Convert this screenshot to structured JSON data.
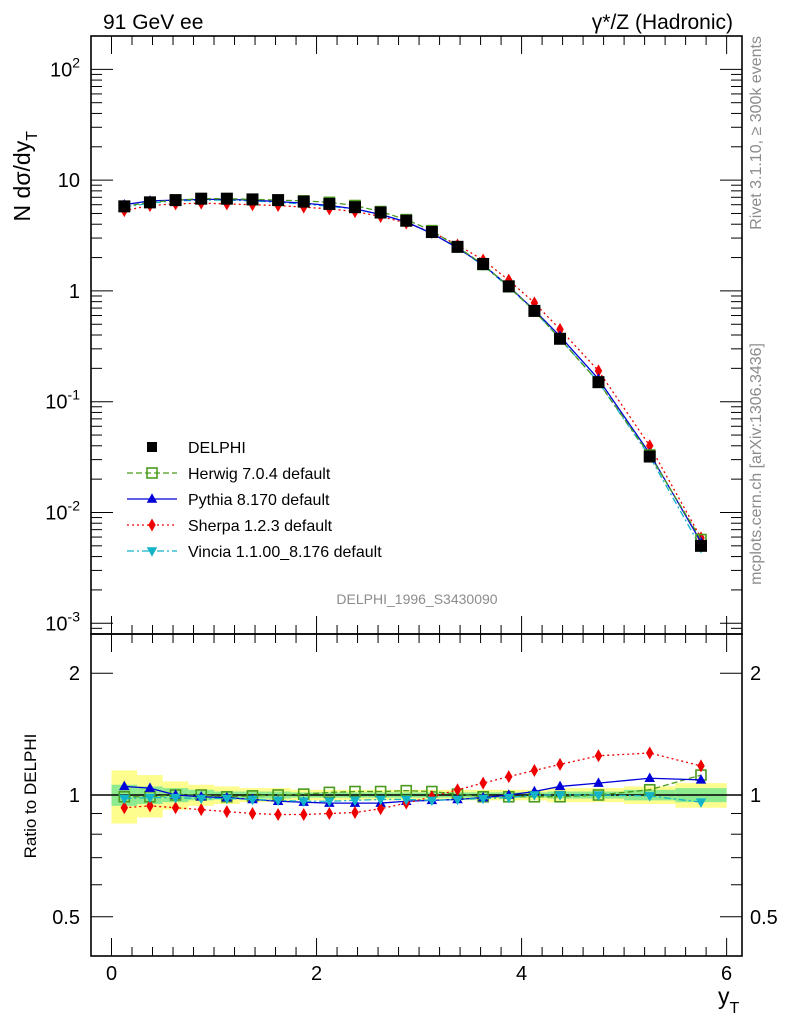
{
  "header": {
    "left": "91 GeV ee",
    "right": "γ*/Z (Hadronic)"
  },
  "side_text": {
    "rivet": "Rivet 3.1.10, ≥ 300k events",
    "site": "mcplots.cern.ch [arXiv:1306.3436]"
  },
  "analysis_id": "DELPHI_1996_S3430090",
  "chart_data": [
    {
      "type": "line",
      "panel": "main",
      "ylabel": "N dσ/dy_T",
      "yscale": "log",
      "ylim": [
        0.0008,
        200
      ],
      "xlim": [
        -0.2,
        6.15
      ],
      "ytick_labels": [
        "10^-3",
        "10^-2",
        "10^-1",
        "1",
        "10",
        "10^2"
      ],
      "legend_position": "lower-left",
      "x": [
        0.125,
        0.375,
        0.625,
        0.875,
        1.125,
        1.375,
        1.625,
        1.875,
        2.125,
        2.375,
        2.625,
        2.875,
        3.125,
        3.375,
        3.625,
        3.875,
        4.125,
        4.375,
        4.75,
        5.25,
        5.75
      ],
      "series": [
        {
          "name": "DELPHI",
          "color": "#000000",
          "marker": "square",
          "line": "none",
          "values": [
            5.8,
            6.3,
            6.6,
            6.8,
            6.8,
            6.7,
            6.6,
            6.4,
            6.1,
            5.7,
            5.1,
            4.3,
            3.4,
            2.5,
            1.75,
            1.1,
            0.66,
            0.37,
            0.15,
            0.032,
            0.005
          ]
        },
        {
          "name": "Herwig 7.0.4 default",
          "color": "#4a9a1e",
          "marker": "open-square",
          "line": "dashed",
          "values": [
            5.8,
            6.3,
            6.6,
            6.8,
            6.8,
            6.7,
            6.6,
            6.5,
            6.3,
            5.9,
            5.2,
            4.4,
            3.5,
            2.5,
            1.73,
            1.09,
            0.66,
            0.37,
            0.15,
            0.033,
            0.0057
          ]
        },
        {
          "name": "Pythia 8.170 default",
          "color": "#0000d8",
          "marker": "triangle-up",
          "line": "solid",
          "values": [
            6.0,
            6.5,
            6.6,
            6.7,
            6.7,
            6.6,
            6.4,
            6.2,
            5.9,
            5.5,
            4.9,
            4.2,
            3.3,
            2.45,
            1.72,
            1.1,
            0.67,
            0.39,
            0.16,
            0.034,
            0.0054
          ]
        },
        {
          "name": "Sherpa 1.2.3 default",
          "color": "#ee0000",
          "marker": "diamond",
          "line": "dotted",
          "values": [
            5.3,
            5.9,
            6.1,
            6.2,
            6.1,
            6.0,
            5.9,
            5.7,
            5.5,
            5.2,
            4.7,
            4.1,
            3.4,
            2.6,
            1.9,
            1.25,
            0.78,
            0.45,
            0.19,
            0.04,
            0.0059
          ]
        },
        {
          "name": "Vincia 1.1.00_8.176 default",
          "color": "#14b4c8",
          "marker": "triangle-down",
          "line": "dashdot",
          "values": [
            5.7,
            6.2,
            6.5,
            6.6,
            6.6,
            6.5,
            6.3,
            6.1,
            5.8,
            5.5,
            4.9,
            4.2,
            3.3,
            2.45,
            1.7,
            1.08,
            0.66,
            0.37,
            0.15,
            0.032,
            0.0048
          ]
        }
      ]
    },
    {
      "type": "line",
      "panel": "ratio",
      "xlabel": "y_T",
      "ylabel": "Ratio to DELPHI",
      "yscale": "log",
      "ylim": [
        0.4,
        2.5
      ],
      "xlim": [
        -0.2,
        6.15
      ],
      "xtick_labels": [
        "0",
        "2",
        "4",
        "6"
      ],
      "ytick_labels": [
        "0.5",
        "1",
        "2"
      ],
      "x": [
        0.125,
        0.375,
        0.625,
        0.875,
        1.125,
        1.375,
        1.625,
        1.875,
        2.125,
        2.375,
        2.625,
        2.875,
        3.125,
        3.375,
        3.625,
        3.875,
        4.125,
        4.375,
        4.75,
        5.25,
        5.75
      ],
      "bands": {
        "bins": [
          0,
          0.25,
          0.5,
          0.75,
          1.0,
          1.25,
          1.5,
          1.75,
          2.0,
          2.25,
          2.5,
          2.75,
          3.0,
          3.25,
          3.5,
          3.75,
          4.0,
          4.25,
          4.5,
          5.0,
          5.5,
          6.0
        ],
        "total_color": "#fdfd8e",
        "stat_color": "#8eea8e",
        "total": [
          0.15,
          0.12,
          0.08,
          0.06,
          0.05,
          0.04,
          0.04,
          0.03,
          0.03,
          0.03,
          0.03,
          0.03,
          0.03,
          0.03,
          0.03,
          0.03,
          0.03,
          0.04,
          0.04,
          0.05,
          0.07
        ],
        "stat": [
          0.06,
          0.05,
          0.04,
          0.03,
          0.02,
          0.02,
          0.02,
          0.015,
          0.015,
          0.015,
          0.015,
          0.015,
          0.015,
          0.015,
          0.015,
          0.015,
          0.015,
          0.02,
          0.02,
          0.03,
          0.04
        ]
      },
      "series": [
        {
          "name": "Herwig 7.0.4 default",
          "color": "#4a9a1e",
          "marker": "open-square",
          "line": "dashed",
          "values": [
            0.99,
            0.99,
            1.0,
            1.0,
            0.99,
            0.995,
            1.0,
            1.005,
            1.015,
            1.02,
            1.02,
            1.025,
            1.02,
            1.005,
            0.99,
            0.99,
            0.99,
            0.99,
            1.0,
            1.03,
            1.12
          ]
        },
        {
          "name": "Pythia 8.170 default",
          "color": "#0000d8",
          "marker": "triangle-up",
          "line": "solid",
          "values": [
            1.05,
            1.04,
            1.0,
            0.99,
            0.985,
            0.975,
            0.965,
            0.96,
            0.955,
            0.955,
            0.955,
            0.965,
            0.97,
            0.975,
            0.985,
            1.0,
            1.02,
            1.05,
            1.07,
            1.1,
            1.09
          ]
        },
        {
          "name": "Sherpa 1.2.3 default",
          "color": "#ee0000",
          "marker": "diamond",
          "line": "dotted",
          "values": [
            0.93,
            0.94,
            0.93,
            0.92,
            0.91,
            0.9,
            0.895,
            0.895,
            0.9,
            0.905,
            0.925,
            0.955,
            0.99,
            1.03,
            1.07,
            1.11,
            1.15,
            1.19,
            1.25,
            1.27,
            1.18
          ]
        },
        {
          "name": "Vincia 1.1.00_8.176 default",
          "color": "#14b4c8",
          "marker": "triangle-down",
          "line": "dashdot",
          "values": [
            0.98,
            0.985,
            0.985,
            0.98,
            0.98,
            0.975,
            0.97,
            0.965,
            0.965,
            0.97,
            0.975,
            0.975,
            0.97,
            0.975,
            0.98,
            0.985,
            1.0,
            1.0,
            1.0,
            0.995,
            0.96
          ]
        }
      ]
    }
  ]
}
